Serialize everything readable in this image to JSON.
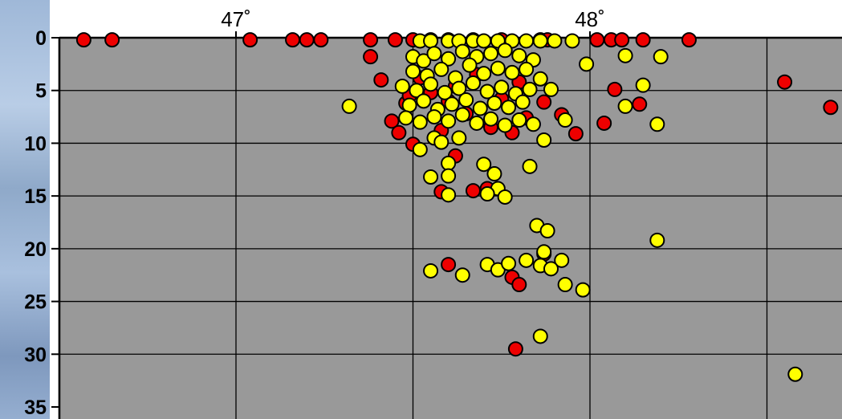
{
  "colors": {
    "plot_background": "#999999",
    "grid": "#000000",
    "red_marker": "#ee0000",
    "yellow_marker": "#ffff00",
    "marker_outline": "#000000",
    "backdrop": "#9fb8d8"
  },
  "chart_data": {
    "type": "scatter",
    "title": "",
    "xlabel": "",
    "ylabel": "",
    "xlim": [
      46.45,
      48.7
    ],
    "ylim": [
      35,
      0
    ],
    "x_ticks": [
      47,
      48
    ],
    "x_tick_labels": [
      "47˚",
      "48˚"
    ],
    "y_ticks": [
      0,
      5,
      10,
      15,
      20,
      25,
      30,
      35
    ],
    "y_tick_labels": [
      "0",
      "5",
      "10",
      "15",
      "20",
      "25",
      "30",
      "35"
    ],
    "x_grid": [
      46.5,
      47.0,
      47.5,
      48.0,
      48.5
    ],
    "y_grid": [
      5,
      10,
      15,
      20,
      25,
      30
    ],
    "grid": true,
    "series": [
      {
        "color": "red",
        "points": [
          [
            46.57,
            0.2
          ],
          [
            46.65,
            0.2
          ],
          [
            47.04,
            0.2
          ],
          [
            47.16,
            0.2
          ],
          [
            47.2,
            0.2
          ],
          [
            47.24,
            0.2
          ],
          [
            47.38,
            0.2
          ],
          [
            47.45,
            0.2
          ],
          [
            47.5,
            0.2
          ],
          [
            47.55,
            0.2
          ],
          [
            47.6,
            0.2
          ],
          [
            47.67,
            0.2
          ],
          [
            47.75,
            0.2
          ],
          [
            47.86,
            0.2
          ],
          [
            47.88,
            0.2
          ],
          [
            48.02,
            0.2
          ],
          [
            48.06,
            0.2
          ],
          [
            48.09,
            0.2
          ],
          [
            48.15,
            0.2
          ],
          [
            48.28,
            0.2
          ],
          [
            47.38,
            1.8
          ],
          [
            47.41,
            4.0
          ],
          [
            47.44,
            7.9
          ],
          [
            47.46,
            9.0
          ],
          [
            47.48,
            6.2
          ],
          [
            47.49,
            5.5
          ],
          [
            47.5,
            10.1
          ],
          [
            47.52,
            3.8
          ],
          [
            47.55,
            5.2
          ],
          [
            47.58,
            8.8
          ],
          [
            47.6,
            6.0
          ],
          [
            47.62,
            4.6
          ],
          [
            47.65,
            7.2
          ],
          [
            47.68,
            3.5
          ],
          [
            47.72,
            8.5
          ],
          [
            47.75,
            5.8
          ],
          [
            47.78,
            9.0
          ],
          [
            47.8,
            4.2
          ],
          [
            47.82,
            7.6
          ],
          [
            47.87,
            6.1
          ],
          [
            47.92,
            7.3
          ],
          [
            47.96,
            9.1
          ],
          [
            48.07,
            4.9
          ],
          [
            48.04,
            8.1
          ],
          [
            48.14,
            6.3
          ],
          [
            48.55,
            4.2
          ],
          [
            48.68,
            6.6
          ],
          [
            47.62,
            11.2
          ],
          [
            47.58,
            14.6
          ],
          [
            47.67,
            14.5
          ],
          [
            47.71,
            14.3
          ],
          [
            47.6,
            21.5
          ],
          [
            47.87,
            20.5
          ],
          [
            47.78,
            22.7
          ],
          [
            47.8,
            23.4
          ],
          [
            47.79,
            29.5
          ]
        ]
      },
      {
        "color": "yellow",
        "points": [
          [
            47.52,
            0.3
          ],
          [
            47.55,
            0.3
          ],
          [
            47.6,
            0.3
          ],
          [
            47.63,
            0.3
          ],
          [
            47.67,
            0.3
          ],
          [
            47.7,
            0.3
          ],
          [
            47.74,
            0.3
          ],
          [
            47.78,
            0.3
          ],
          [
            47.82,
            0.3
          ],
          [
            47.86,
            0.3
          ],
          [
            47.9,
            0.3
          ],
          [
            47.95,
            0.3
          ],
          [
            47.5,
            1.8
          ],
          [
            47.53,
            2.2
          ],
          [
            47.56,
            1.5
          ],
          [
            47.6,
            2.0
          ],
          [
            47.64,
            1.3
          ],
          [
            47.68,
            1.8
          ],
          [
            47.72,
            1.5
          ],
          [
            47.76,
            1.2
          ],
          [
            47.8,
            1.7
          ],
          [
            47.84,
            2.1
          ],
          [
            47.5,
            3.2
          ],
          [
            47.54,
            3.6
          ],
          [
            47.58,
            3.0
          ],
          [
            47.62,
            3.8
          ],
          [
            47.66,
            2.6
          ],
          [
            47.7,
            3.4
          ],
          [
            47.74,
            2.9
          ],
          [
            47.78,
            3.3
          ],
          [
            47.82,
            3.0
          ],
          [
            47.86,
            3.9
          ],
          [
            47.47,
            4.6
          ],
          [
            47.51,
            5.0
          ],
          [
            47.55,
            4.4
          ],
          [
            47.59,
            5.2
          ],
          [
            47.63,
            4.8
          ],
          [
            47.67,
            4.3
          ],
          [
            47.71,
            5.1
          ],
          [
            47.75,
            4.7
          ],
          [
            47.79,
            5.3
          ],
          [
            47.83,
            4.9
          ],
          [
            47.49,
            6.4
          ],
          [
            47.53,
            6.0
          ],
          [
            47.57,
            6.8
          ],
          [
            47.61,
            6.3
          ],
          [
            47.65,
            5.9
          ],
          [
            47.69,
            6.7
          ],
          [
            47.73,
            6.2
          ],
          [
            47.77,
            6.6
          ],
          [
            47.81,
            6.1
          ],
          [
            47.48,
            7.6
          ],
          [
            47.52,
            8.0
          ],
          [
            47.56,
            7.5
          ],
          [
            47.6,
            7.9
          ],
          [
            47.64,
            7.3
          ],
          [
            47.68,
            8.1
          ],
          [
            47.72,
            7.7
          ],
          [
            47.76,
            8.3
          ],
          [
            47.8,
            7.8
          ],
          [
            47.84,
            8.2
          ],
          [
            47.32,
            6.5
          ],
          [
            47.89,
            4.9
          ],
          [
            47.93,
            7.8
          ],
          [
            47.99,
            2.5
          ],
          [
            48.1,
            1.7
          ],
          [
            48.2,
            1.8
          ],
          [
            48.15,
            4.5
          ],
          [
            48.19,
            8.2
          ],
          [
            48.1,
            6.5
          ],
          [
            47.87,
            9.7
          ],
          [
            47.52,
            10.6
          ],
          [
            47.56,
            9.5
          ],
          [
            47.58,
            9.9
          ],
          [
            47.63,
            9.5
          ],
          [
            47.6,
            11.9
          ],
          [
            47.55,
            13.2
          ],
          [
            47.6,
            13.1
          ],
          [
            47.7,
            12.0
          ],
          [
            47.73,
            12.9
          ],
          [
            47.74,
            14.3
          ],
          [
            47.76,
            15.1
          ],
          [
            47.71,
            14.8
          ],
          [
            47.6,
            14.9
          ],
          [
            47.83,
            12.2
          ],
          [
            47.85,
            17.8
          ],
          [
            47.88,
            18.3
          ],
          [
            47.87,
            20.3
          ],
          [
            47.92,
            21.1
          ],
          [
            48.19,
            19.2
          ],
          [
            47.55,
            22.1
          ],
          [
            47.64,
            22.5
          ],
          [
            47.71,
            21.5
          ],
          [
            47.74,
            22.0
          ],
          [
            47.77,
            21.4
          ],
          [
            47.82,
            21.1
          ],
          [
            47.86,
            21.6
          ],
          [
            47.89,
            21.9
          ],
          [
            47.93,
            23.4
          ],
          [
            47.98,
            23.9
          ],
          [
            47.86,
            28.3
          ],
          [
            48.58,
            31.9
          ]
        ]
      }
    ]
  }
}
